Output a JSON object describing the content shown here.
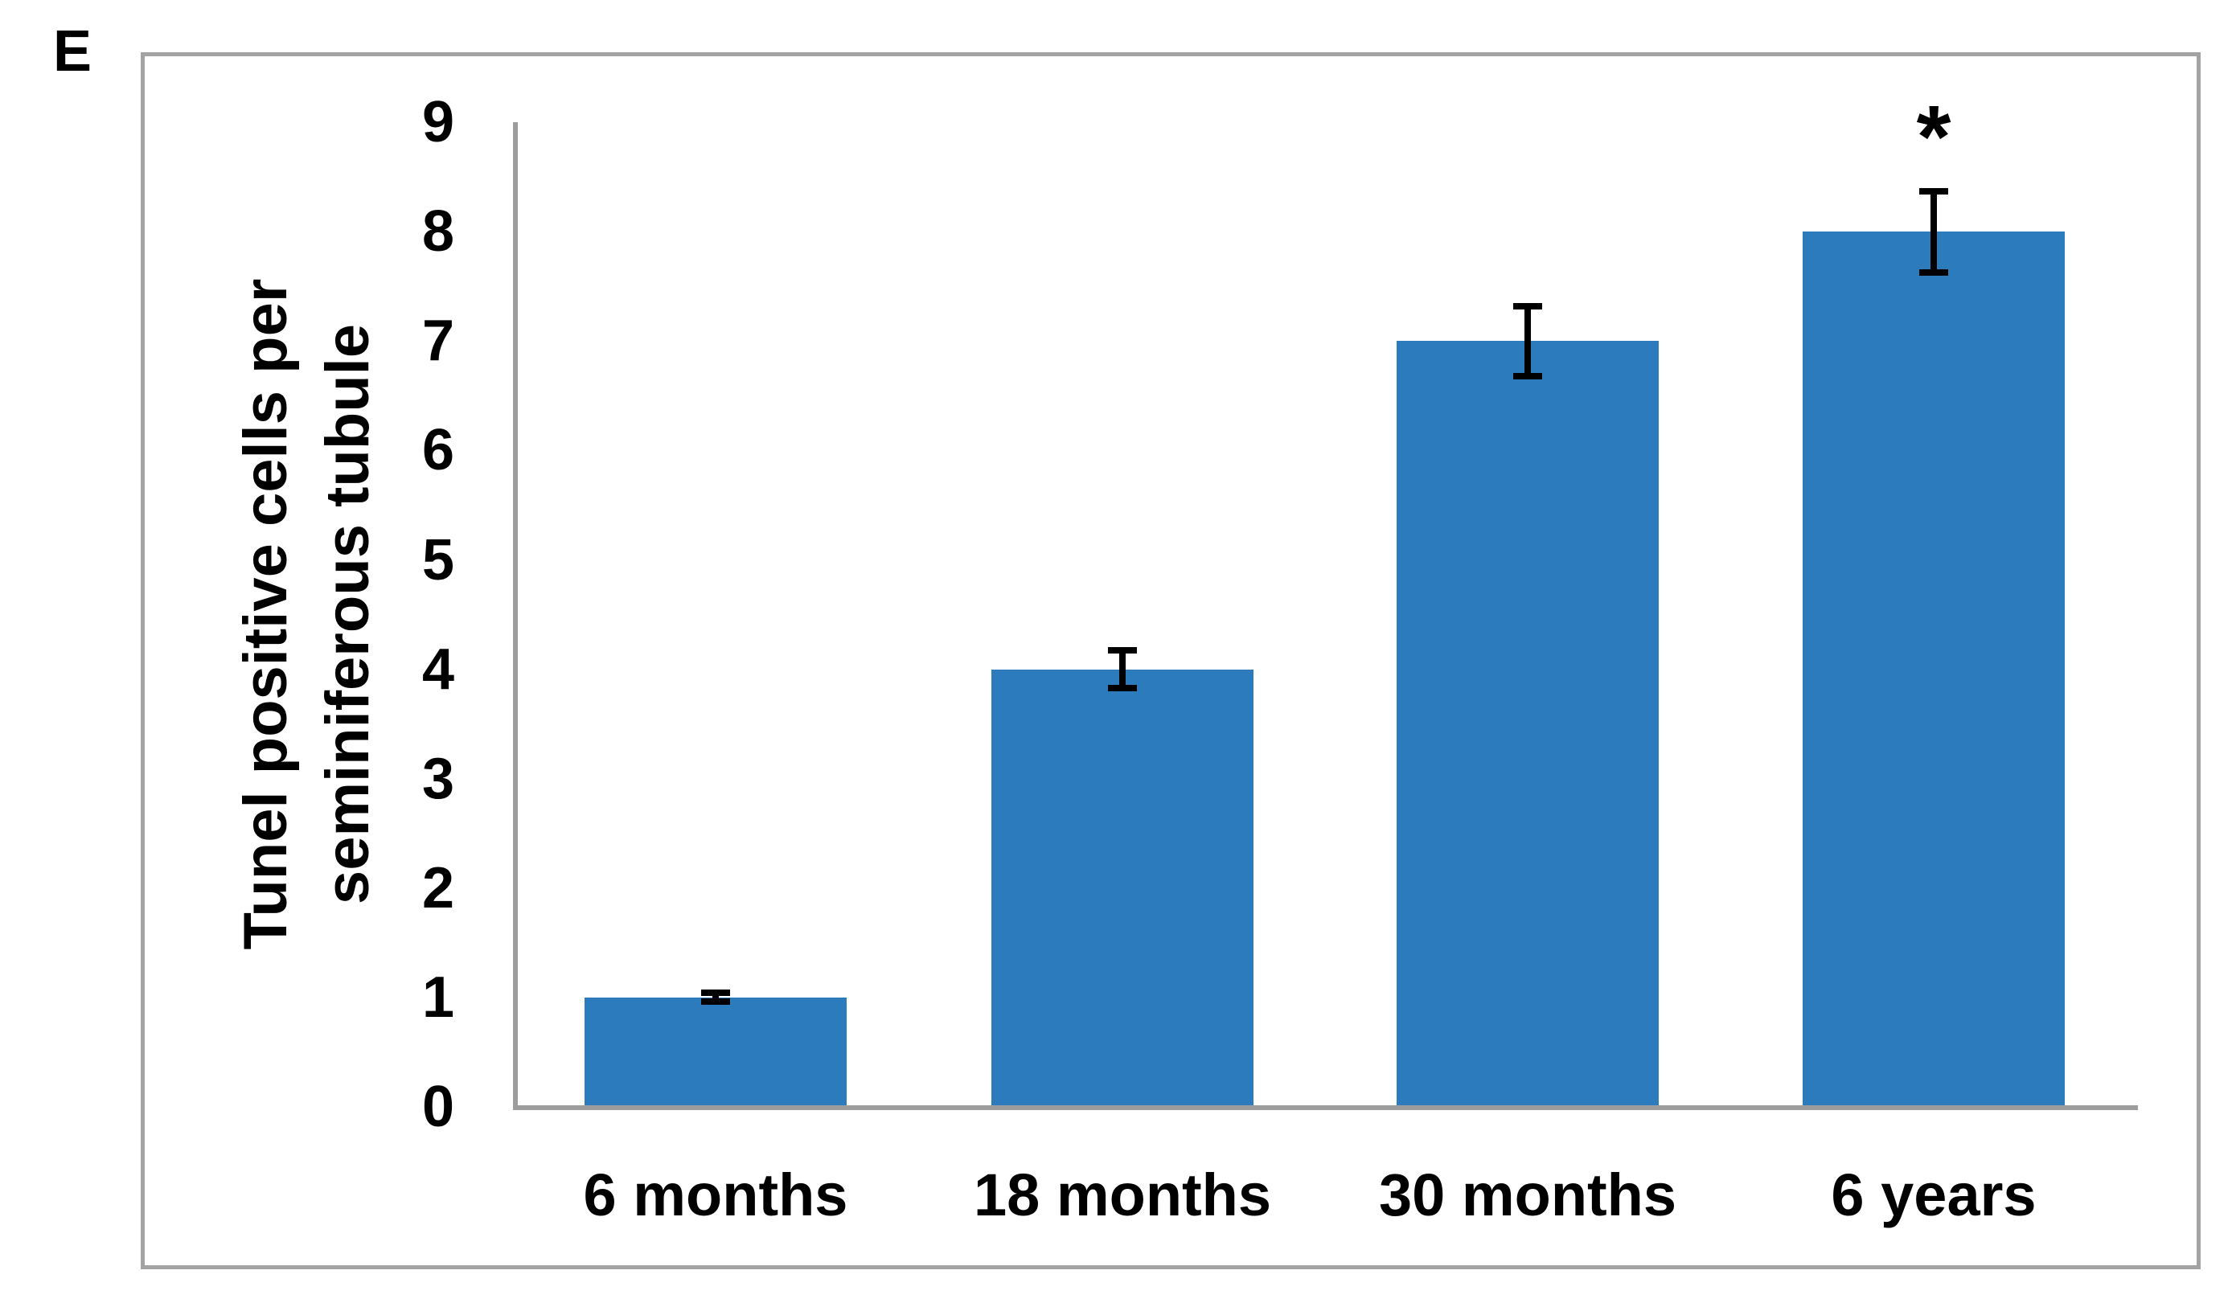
{
  "panel_label": "E",
  "chart_data": {
    "type": "bar",
    "title": "",
    "xlabel": "",
    "ylabel": "Tunel positive cells per seminiferous tubule",
    "ylabel_lines": [
      "Tunel positive cells per",
      "seminiferous tubule"
    ],
    "categories": [
      "6 months",
      "18 months",
      "30 months",
      "6 years"
    ],
    "values": [
      1,
      4,
      7,
      8
    ],
    "errors": [
      0.07,
      0.2,
      0.35,
      0.4
    ],
    "yticks": [
      "0",
      "1",
      "2",
      "3",
      "4",
      "5",
      "6",
      "7",
      "8",
      "9"
    ],
    "ylim": [
      0,
      9
    ],
    "grid": false,
    "legend": "none",
    "annotations": [
      {
        "category": "6 years",
        "text": "*"
      }
    ],
    "bar_color": "#2c7cbd",
    "axis_color": "#9d9d9d",
    "error_bar_color": "#000000",
    "text_color": "#000000"
  }
}
